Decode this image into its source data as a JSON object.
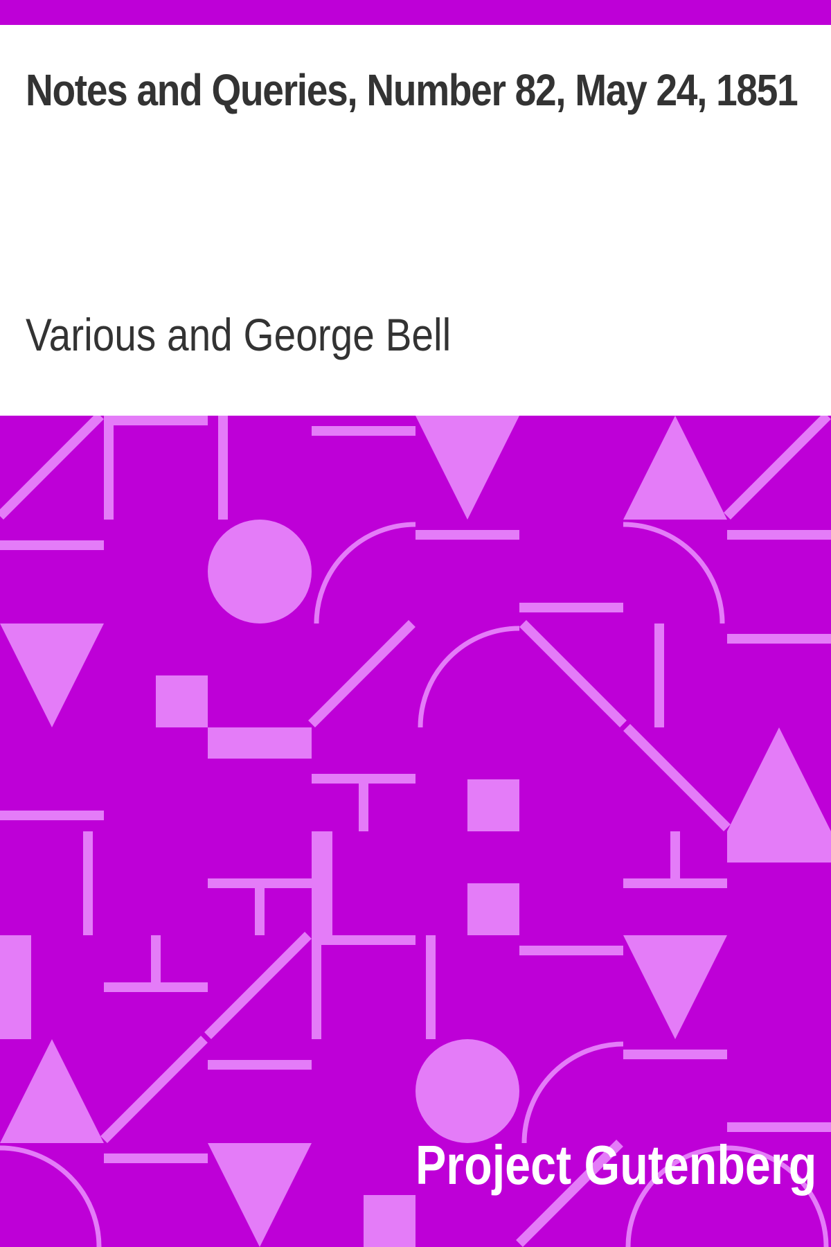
{
  "book": {
    "title": "Notes and Queries, Number 82, May 24, 1851",
    "author": "Various and George Bell",
    "publisher": "Project Gutenberg"
  },
  "colors": {
    "background": "#ffffff",
    "band": "#be00d7",
    "shape": "#e47cf8",
    "text": "#333333",
    "publisher_text": "#ffffff"
  }
}
